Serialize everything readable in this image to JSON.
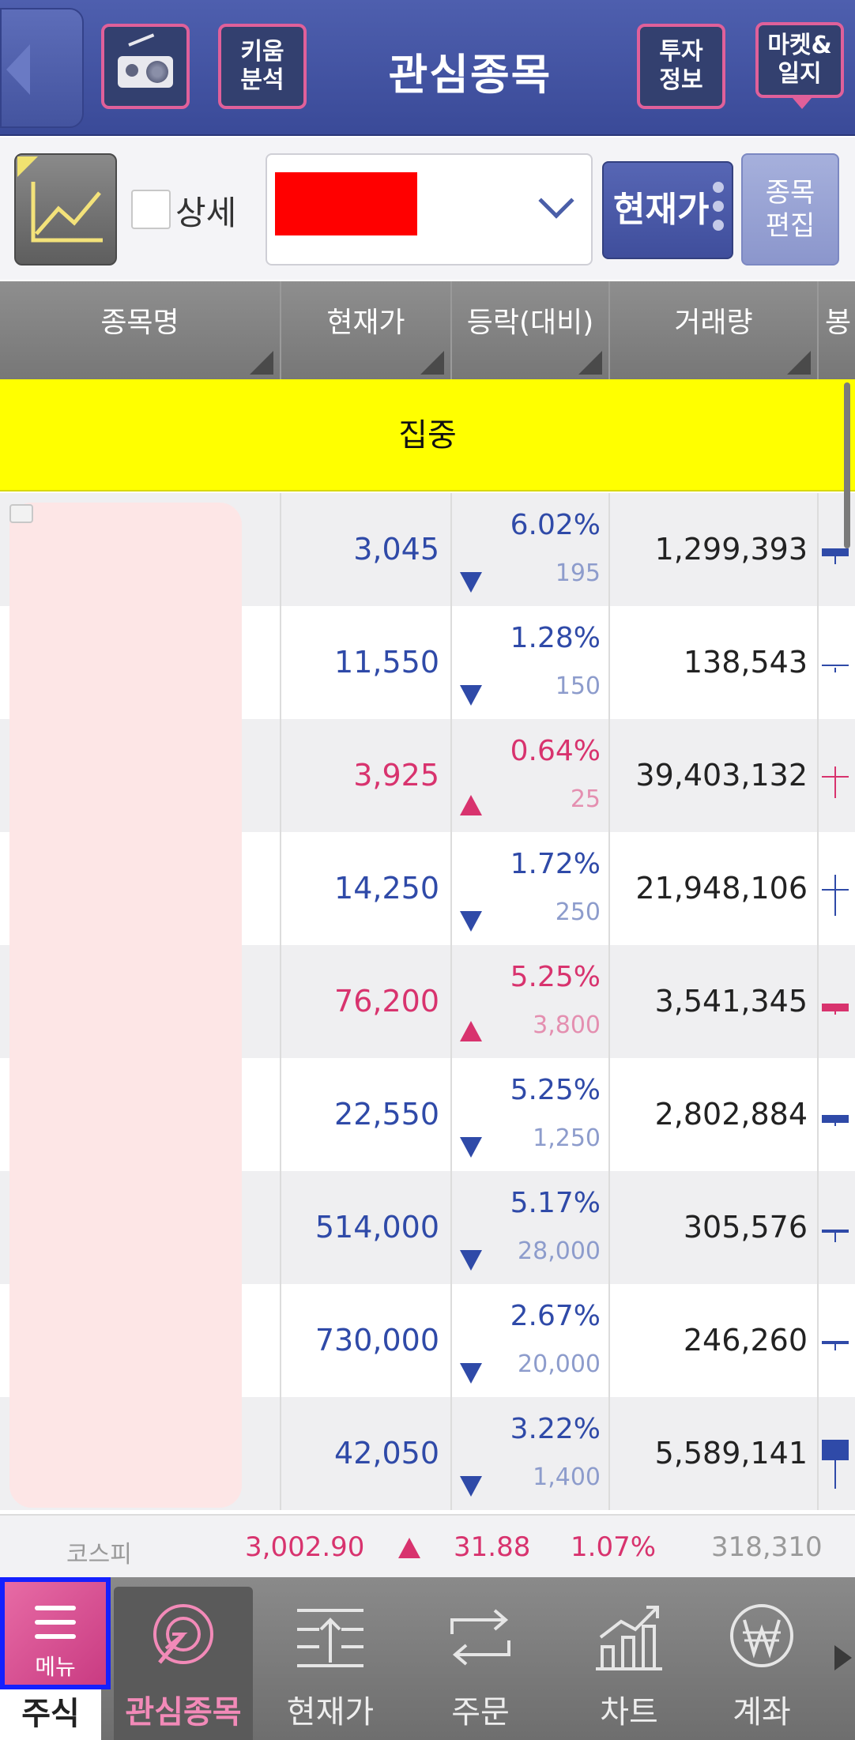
{
  "header": {
    "title": "관심종목",
    "kiwoom_label": "키움\n분석",
    "invest_label": "투자\n정보",
    "market_label": "마켓&\n일지",
    "radio_icon": "radio-icon",
    "back_icon": "back-arrow-icon"
  },
  "toolbar": {
    "chart_icon": "line-chart-icon",
    "detail_label": "상세",
    "detail_checked": false,
    "group_value": "",
    "price_mode_label": "현재가",
    "edit_label": "종목\n편집"
  },
  "columns": [
    "종목명",
    "현재가",
    "등락(대비)",
    "거래량",
    "봉"
  ],
  "focus_row_label": "집중",
  "colors": {
    "up": "#d8336e",
    "down": "#2f4aa8",
    "highlight": "#ffff00",
    "accent": "#e76ba5",
    "header": "#4e5fae"
  },
  "rows": [
    {
      "price": "3,045",
      "pct": "6.02%",
      "diff": "195",
      "dir": "down",
      "volume": "1,299,393"
    },
    {
      "price": "11,550",
      "pct": "1.28%",
      "diff": "150",
      "dir": "down",
      "volume": "138,543"
    },
    {
      "price": "3,925",
      "pct": "0.64%",
      "diff": "25",
      "dir": "up",
      "volume": "39,403,132"
    },
    {
      "price": "14,250",
      "pct": "1.72%",
      "diff": "250",
      "dir": "down",
      "volume": "21,948,106"
    },
    {
      "price": "76,200",
      "pct": "5.25%",
      "diff": "3,800",
      "dir": "up",
      "volume": "3,541,345"
    },
    {
      "price": "22,550",
      "pct": "5.25%",
      "diff": "1,250",
      "dir": "down",
      "volume": "2,802,884"
    },
    {
      "price": "514,000",
      "pct": "5.17%",
      "diff": "28,000",
      "dir": "down",
      "volume": "305,576"
    },
    {
      "price": "730,000",
      "pct": "2.67%",
      "diff": "20,000",
      "dir": "down",
      "volume": "246,260"
    },
    {
      "price": "42,050",
      "pct": "3.22%",
      "diff": "1,400",
      "dir": "down",
      "volume": "5,589,141"
    }
  ],
  "index_ticker": {
    "name": "코스피",
    "value": "3,002.90",
    "dir": "up",
    "change": "31.88",
    "pct": "1.07%",
    "volume": "318,310"
  },
  "bottom_nav": {
    "menu_label": "메뉴",
    "stock_label": "주식",
    "items": [
      {
        "label": "관심종목",
        "icon": "watchlist-icon",
        "active": true
      },
      {
        "label": "현재가",
        "icon": "current-price-icon",
        "active": false
      },
      {
        "label": "주문",
        "icon": "order-exchange-icon",
        "active": false
      },
      {
        "label": "차트",
        "icon": "chart-icon",
        "active": false
      },
      {
        "label": "계좌",
        "icon": "won-account-icon",
        "active": false
      }
    ]
  }
}
